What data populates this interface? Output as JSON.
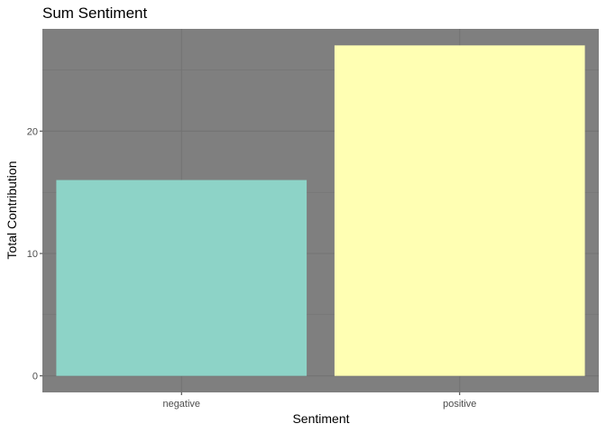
{
  "chart_data": {
    "type": "bar",
    "title": "Sum Sentiment",
    "xlabel": "Sentiment",
    "ylabel": "Total Contribution",
    "categories": [
      "negative",
      "positive"
    ],
    "values": [
      16,
      27
    ],
    "bar_colors": [
      "#8DD3C7",
      "#FFFFB3"
    ],
    "ylim": [
      -1.35,
      28.35
    ],
    "yticks": [
      0,
      10,
      20
    ],
    "grid": true,
    "legend": "none",
    "panel_background": "#7F7F7F",
    "grid_color": "#737373"
  }
}
